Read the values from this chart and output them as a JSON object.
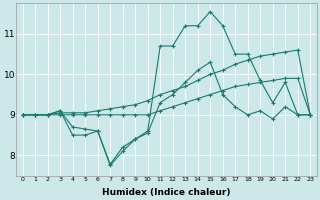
{
  "xlabel": "Humidex (Indice chaleur)",
  "ylabel": "",
  "bg_color": "#cce8e8",
  "line_color": "#1a7a6e",
  "grid_color": "#ffffff",
  "xlim": [
    -0.5,
    23.5
  ],
  "ylim": [
    7.5,
    11.75
  ],
  "yticks": [
    8,
    9,
    10,
    11
  ],
  "xticks": [
    0,
    1,
    2,
    3,
    4,
    5,
    6,
    7,
    8,
    9,
    10,
    11,
    12,
    13,
    14,
    15,
    16,
    17,
    18,
    19,
    20,
    21,
    22,
    23
  ],
  "series": [
    [
      9.0,
      9.0,
      9.0,
      9.1,
      8.7,
      8.65,
      8.6,
      7.78,
      8.2,
      8.4,
      8.6,
      10.7,
      10.7,
      11.2,
      11.2,
      11.55,
      11.2,
      10.5,
      10.5,
      9.85,
      9.3,
      9.8,
      9.0,
      9.0
    ],
    [
      9.0,
      9.0,
      9.0,
      9.1,
      8.5,
      8.5,
      8.6,
      7.75,
      8.1,
      8.4,
      8.55,
      9.3,
      9.5,
      9.8,
      10.1,
      10.3,
      9.5,
      9.2,
      9.0,
      9.1,
      8.9,
      9.2,
      9.0,
      9.0
    ],
    [
      9.0,
      9.0,
      9.0,
      9.05,
      9.05,
      9.05,
      9.1,
      9.15,
      9.2,
      9.25,
      9.35,
      9.5,
      9.6,
      9.7,
      9.85,
      10.0,
      10.1,
      10.25,
      10.35,
      10.45,
      10.5,
      10.55,
      10.6,
      9.0
    ],
    [
      9.0,
      9.0,
      9.0,
      9.0,
      9.0,
      9.0,
      9.0,
      9.0,
      9.0,
      9.0,
      9.0,
      9.1,
      9.2,
      9.3,
      9.4,
      9.5,
      9.6,
      9.7,
      9.75,
      9.8,
      9.85,
      9.9,
      9.9,
      9.0
    ]
  ]
}
